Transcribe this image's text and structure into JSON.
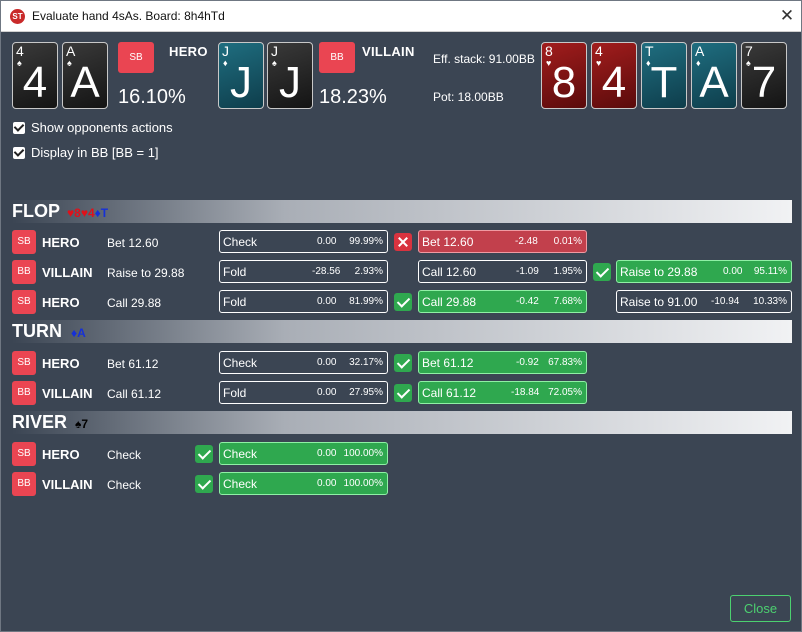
{
  "window": {
    "title": "Evaluate hand 4sAs. Board: 8h4hTd",
    "close_glyph": "✕"
  },
  "app_icon_text": "ST",
  "hero": {
    "cards": [
      {
        "rank": "4",
        "suit": "♠",
        "color": "black"
      },
      {
        "rank": "A",
        "suit": "♠",
        "color": "black"
      }
    ],
    "position": "SB",
    "name": "HERO",
    "equity": "16.10%"
  },
  "villain": {
    "cards": [
      {
        "rank": "J",
        "suit": "♦",
        "color": "blue"
      },
      {
        "rank": "J",
        "suit": "♠",
        "color": "blue"
      }
    ],
    "position": "BB",
    "name": "VILLAIN",
    "equity": "18.23%"
  },
  "eff_stack": "Eff. stack: 91.00BB",
  "pot": "Pot: 18.00BB",
  "board": [
    {
      "rank": "8",
      "suit": "♥",
      "color": "red"
    },
    {
      "rank": "4",
      "suit": "♥",
      "color": "red"
    },
    {
      "rank": "T",
      "suit": "♦",
      "color": "blue"
    },
    {
      "rank": "A",
      "suit": "♦",
      "color": "blue"
    },
    {
      "rank": "7",
      "suit": "♠",
      "color": "black"
    }
  ],
  "options": {
    "show_opponents": "Show opponents actions",
    "display_bb": "Display in BB [BB = 1]"
  },
  "streets": {
    "flop": {
      "name": "FLOP",
      "cards": [
        {
          "text": "♥8",
          "color": "red"
        },
        {
          "text": "♥4",
          "color": "red"
        },
        {
          "text": "♦T",
          "color": "blue"
        }
      ],
      "rows": [
        {
          "position": "SB",
          "player": "HERO",
          "action": "Bet 12.60",
          "boxes": [
            {
              "label": "Check",
              "ev": "0.00",
              "pct": "99.99%",
              "style": "plain"
            },
            {
              "mark": "bad",
              "label": "Bet 12.60",
              "ev": "-2.48",
              "pct": "0.01%",
              "style": "red"
            }
          ]
        },
        {
          "position": "BB",
          "player": "VILLAIN",
          "action": "Raise to 29.88",
          "boxes": [
            {
              "label": "Fold",
              "ev": "-28.56",
              "pct": "2.93%",
              "style": "plain"
            },
            {
              "label": "Call 12.60",
              "ev": "-1.09",
              "pct": "1.95%",
              "style": "plain"
            },
            {
              "mark": "ok",
              "label": "Raise to 29.88",
              "ev": "0.00",
              "pct": "95.11%",
              "style": "green"
            }
          ]
        },
        {
          "position": "SB",
          "player": "HERO",
          "action": "Call 29.88",
          "boxes": [
            {
              "label": "Fold",
              "ev": "0.00",
              "pct": "81.99%",
              "style": "plain"
            },
            {
              "mark": "ok",
              "label": "Call 29.88",
              "ev": "-0.42",
              "pct": "7.68%",
              "style": "green"
            },
            {
              "label": "Raise to 91.00",
              "ev": "-10.94",
              "pct": "10.33%",
              "style": "plain"
            }
          ]
        }
      ]
    },
    "turn": {
      "name": "TURN",
      "cards": [
        {
          "text": "♦A",
          "color": "blue"
        }
      ],
      "rows": [
        {
          "position": "SB",
          "player": "HERO",
          "action": "Bet 61.12",
          "boxes": [
            {
              "label": "Check",
              "ev": "0.00",
              "pct": "32.17%",
              "style": "plain"
            },
            {
              "mark": "ok",
              "label": "Bet 61.12",
              "ev": "-0.92",
              "pct": "67.83%",
              "style": "green"
            }
          ]
        },
        {
          "position": "BB",
          "player": "VILLAIN",
          "action": "Call 61.12",
          "boxes": [
            {
              "label": "Fold",
              "ev": "0.00",
              "pct": "27.95%",
              "style": "plain"
            },
            {
              "mark": "ok",
              "label": "Call 61.12",
              "ev": "-18.84",
              "pct": "72.05%",
              "style": "green"
            }
          ]
        }
      ]
    },
    "river": {
      "name": "RIVER",
      "cards": [
        {
          "text": "♠7",
          "color": "black"
        }
      ],
      "rows": [
        {
          "position": "SB",
          "player": "HERO",
          "action": "Check",
          "boxes": [
            {
              "mark": "ok",
              "label": "Check",
              "ev": "0.00",
              "pct": "100.00%",
              "style": "green"
            }
          ]
        },
        {
          "position": "BB",
          "player": "VILLAIN",
          "action": "Check",
          "boxes": [
            {
              "mark": "ok",
              "label": "Check",
              "ev": "0.00",
              "pct": "100.00%",
              "style": "green"
            }
          ]
        }
      ]
    }
  },
  "close_button": "Close"
}
